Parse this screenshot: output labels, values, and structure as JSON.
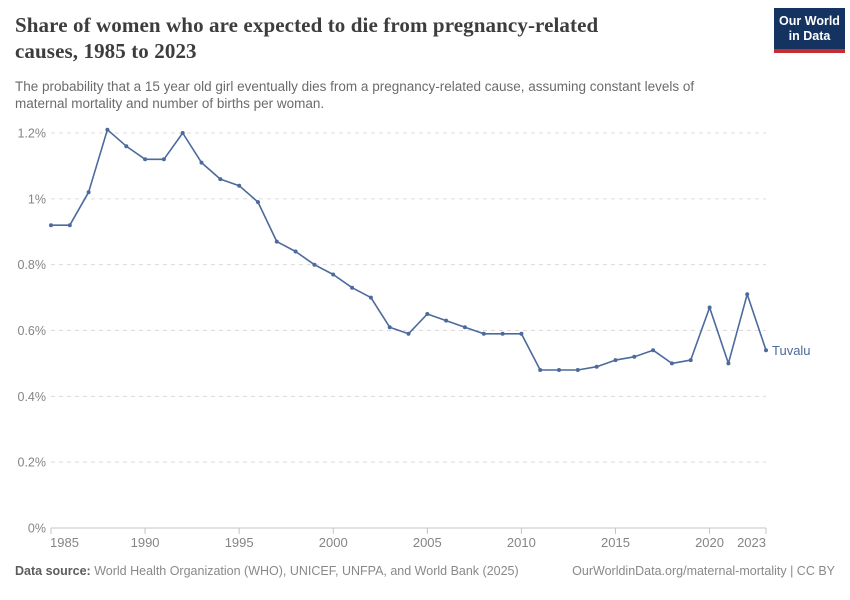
{
  "header": {
    "title_lines": [
      "Share of women who are expected to die from pregnancy-related",
      "causes, 1985 to 2023"
    ],
    "subtitle_lines": [
      "The probability that a 15 year old girl eventually dies from a pregnancy-related cause, assuming constant levels of",
      "maternal mortality and number of births per woman."
    ],
    "logo_line1": "Our World",
    "logo_line2": "in Data"
  },
  "chart_data": {
    "type": "line",
    "title": "Share of women who are expected to die from pregnancy-related causes, 1985 to 2023",
    "xlabel": "",
    "ylabel": "",
    "xlim": [
      1985,
      2023
    ],
    "ylim": [
      0,
      1.2
    ],
    "grid": "horizontal dashed",
    "legend_position": "end-of-line label",
    "x": [
      1985,
      1986,
      1987,
      1988,
      1989,
      1990,
      1991,
      1992,
      1993,
      1994,
      1995,
      1996,
      1997,
      1998,
      1999,
      2000,
      2001,
      2002,
      2003,
      2004,
      2005,
      2006,
      2007,
      2008,
      2009,
      2010,
      2011,
      2012,
      2013,
      2014,
      2015,
      2016,
      2017,
      2018,
      2019,
      2020,
      2021,
      2022,
      2023
    ],
    "series": [
      {
        "name": "Tuvalu",
        "color": "#4C6A9C",
        "values": [
          0.92,
          0.92,
          1.02,
          1.21,
          1.16,
          1.12,
          1.12,
          1.2,
          1.11,
          1.06,
          1.04,
          0.99,
          0.87,
          0.84,
          0.8,
          0.77,
          0.73,
          0.7,
          0.61,
          0.59,
          0.65,
          0.63,
          0.61,
          0.59,
          0.59,
          0.59,
          0.48,
          0.48,
          0.48,
          0.49,
          0.51,
          0.52,
          0.54,
          0.5,
          0.51,
          0.67,
          0.5,
          0.71,
          0.54
        ]
      }
    ],
    "x_ticks": [
      {
        "year": 1985,
        "label": "1985"
      },
      {
        "year": 1990,
        "label": "1990"
      },
      {
        "year": 1995,
        "label": "1995"
      },
      {
        "year": 2000,
        "label": "2000"
      },
      {
        "year": 2005,
        "label": "2005"
      },
      {
        "year": 2010,
        "label": "2010"
      },
      {
        "year": 2015,
        "label": "2015"
      },
      {
        "year": 2020,
        "label": "2020"
      },
      {
        "year": 2023,
        "label": "2023"
      }
    ],
    "y_ticks": [
      {
        "v": 0,
        "label": "0%"
      },
      {
        "v": 0.2,
        "label": "0.2%"
      },
      {
        "v": 0.4,
        "label": "0.4%"
      },
      {
        "v": 0.6,
        "label": "0.6%"
      },
      {
        "v": 0.8,
        "label": "0.8%"
      },
      {
        "v": 1,
        "label": "1%"
      },
      {
        "v": 1.2,
        "label": "1.2%"
      }
    ],
    "colors": {
      "line": "#4C6A9C",
      "gridline": "#dcdcdc",
      "axis": "#c4c4c4",
      "tick_label": "#858585"
    }
  },
  "footer": {
    "datasource_label": "Data source:",
    "datasource_text": "World Health Organization (WHO), UNICEF, UNFPA, and World Bank (2025)",
    "license_text": "OurWorldinData.org/maternal-mortality | CC BY"
  }
}
